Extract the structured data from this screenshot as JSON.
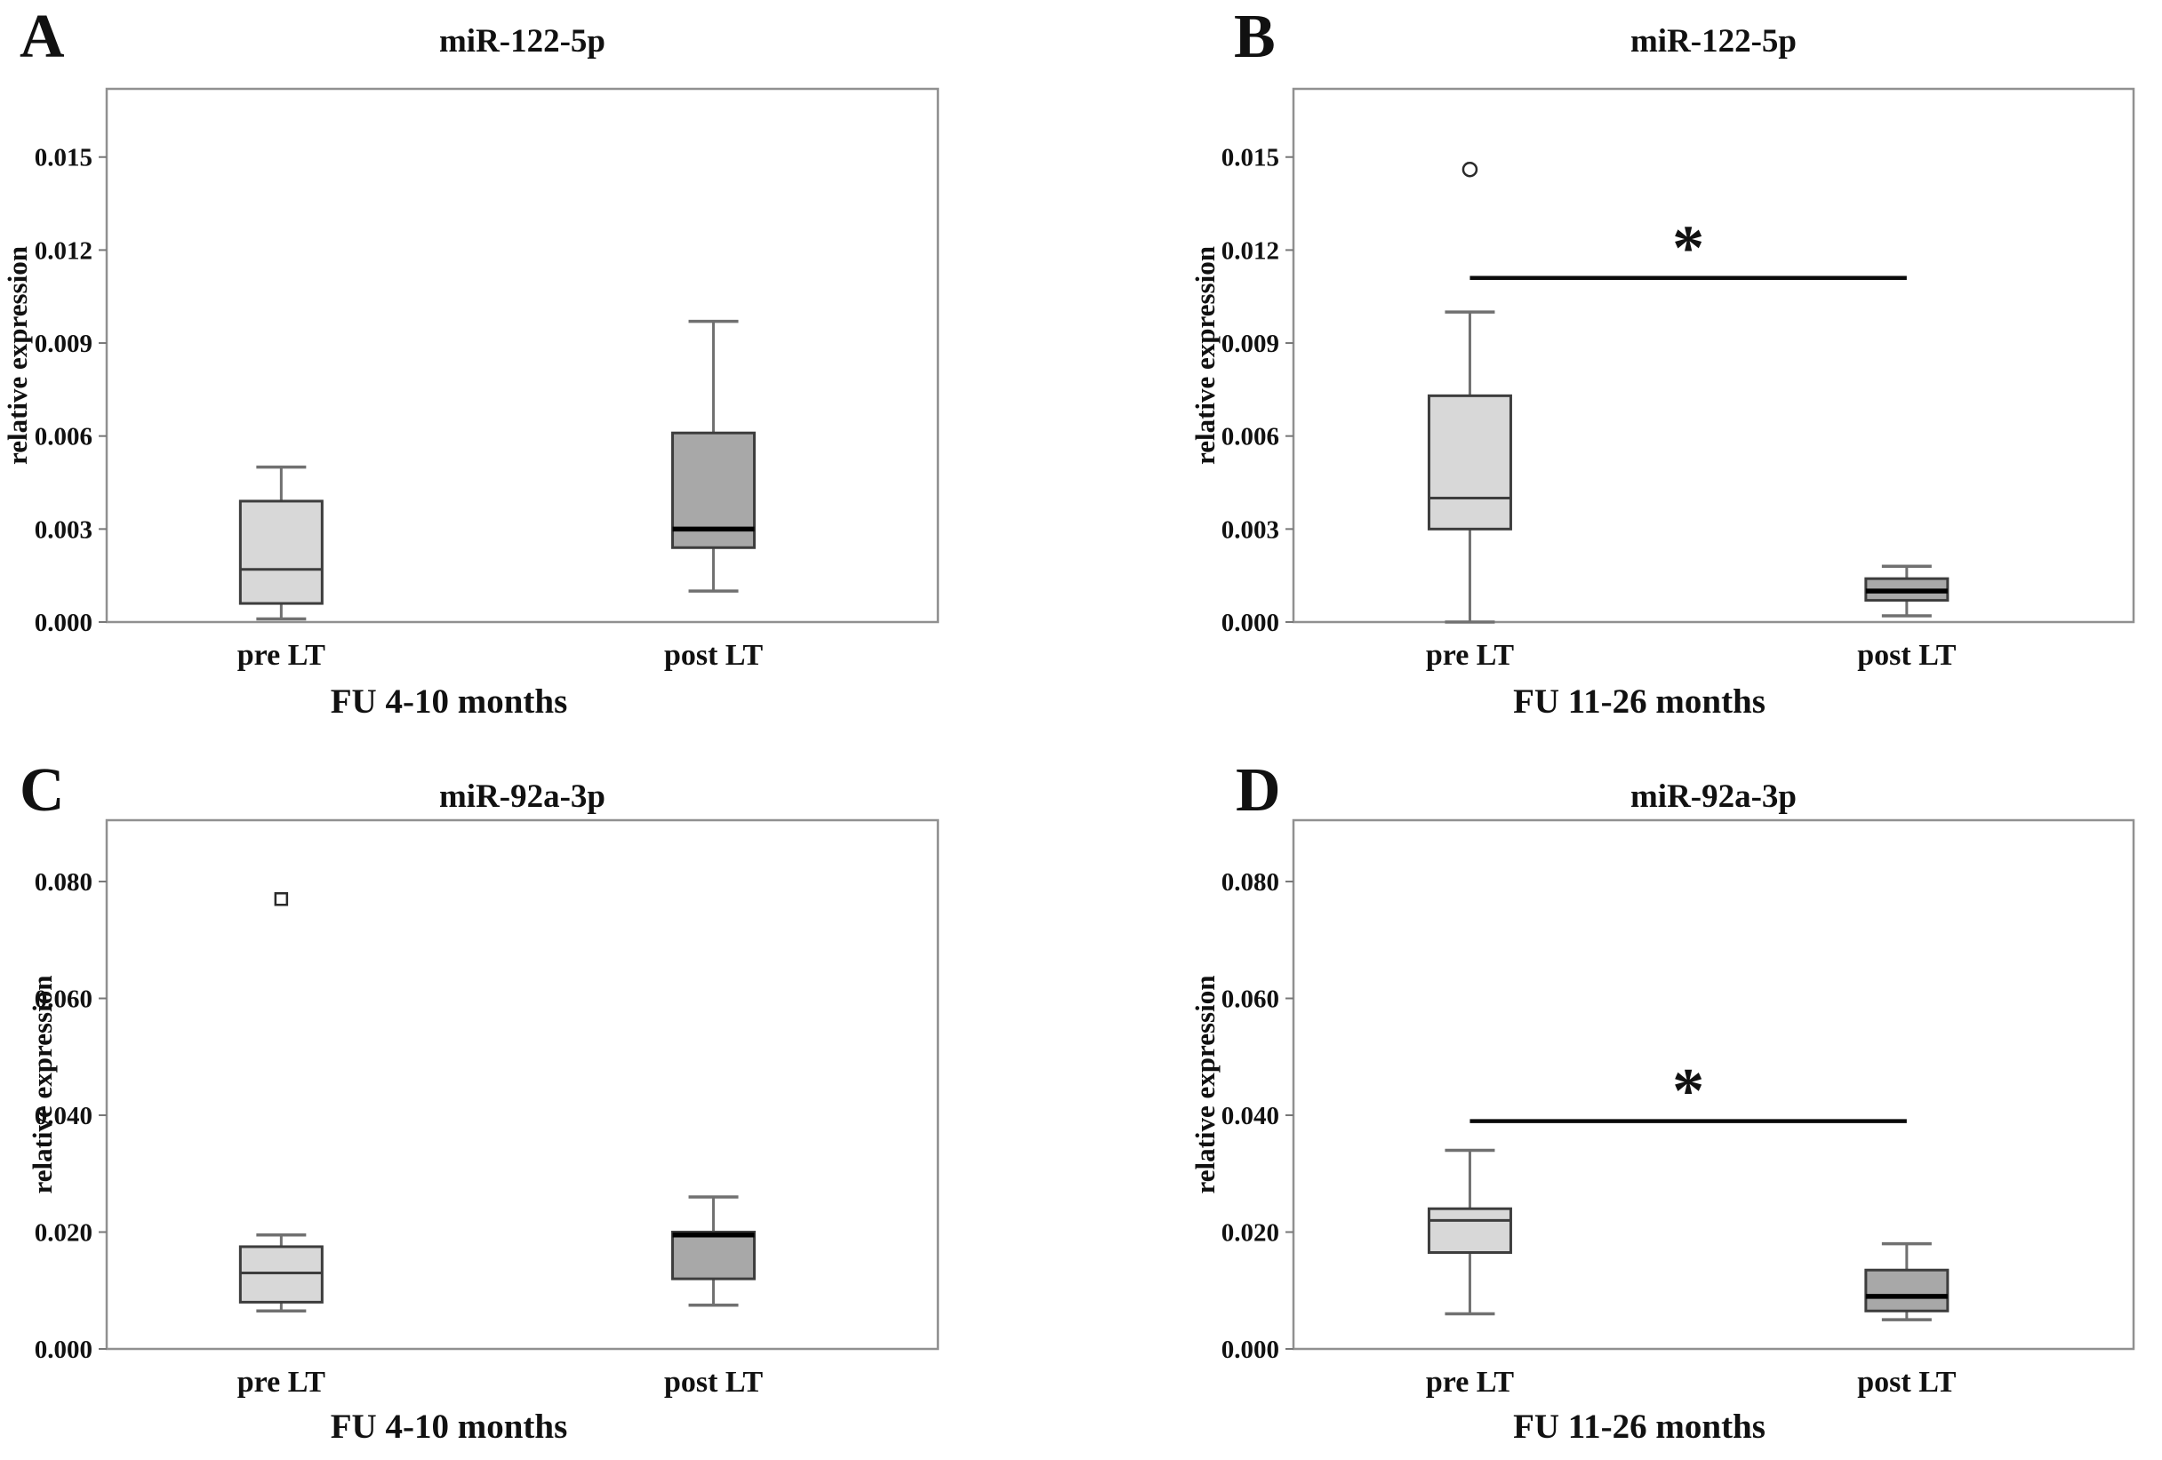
{
  "figure_title": "",
  "colors": {
    "pre_box_fill": "#d8d8d8",
    "post_box_fill": "#a8a8a8",
    "box_border": "#3d3d3d",
    "whisker": "#707070",
    "median_thin": "#3d3d3d",
    "median_thick": "#000000",
    "plot_frame": "#909090",
    "significance_line": "#0a0a0a",
    "text": "#111111"
  },
  "chart_data": [
    {
      "type": "box",
      "panel_letter": "A",
      "title": "miR-122-5p",
      "xlabel": "FU 4-10 months",
      "ylabel": "relative expression",
      "categories": [
        "pre LT",
        "post LT"
      ],
      "ylim": [
        0,
        0.0172
      ],
      "yticks": [
        0.0,
        0.003,
        0.006,
        0.009,
        0.012,
        0.015
      ],
      "ytick_labels": [
        "0.000",
        "0.003",
        "0.006",
        "0.009",
        "0.012",
        "0.015"
      ],
      "grid": false,
      "legend": "none",
      "boxes": [
        {
          "category": "pre LT",
          "whisker_low": 0.0001,
          "q1": 0.0006,
          "median": 0.0017,
          "q3": 0.0039,
          "whisker_high": 0.005,
          "fill": "#d8d8d8",
          "median_thick": false
        },
        {
          "category": "post LT",
          "whisker_low": 0.001,
          "q1": 0.0024,
          "median": 0.003,
          "q3": 0.0061,
          "whisker_high": 0.0097,
          "fill": "#a8a8a8",
          "median_thick": true
        }
      ],
      "outliers": [],
      "significance": null
    },
    {
      "type": "box",
      "panel_letter": "B",
      "title": "miR-122-5p",
      "xlabel": "FU 11-26 months",
      "ylabel": "relative expression",
      "categories": [
        "pre LT",
        "post LT"
      ],
      "ylim": [
        0,
        0.0172
      ],
      "yticks": [
        0.0,
        0.003,
        0.006,
        0.009,
        0.012,
        0.015
      ],
      "ytick_labels": [
        "0.000",
        "0.003",
        "0.006",
        "0.009",
        "0.012",
        "0.015"
      ],
      "grid": false,
      "legend": "none",
      "boxes": [
        {
          "category": "pre LT",
          "whisker_low": 0.0,
          "q1": 0.003,
          "median": 0.004,
          "q3": 0.0073,
          "whisker_high": 0.01,
          "fill": "#d8d8d8",
          "median_thick": false
        },
        {
          "category": "post LT",
          "whisker_low": 0.0002,
          "q1": 0.0007,
          "median": 0.001,
          "q3": 0.0014,
          "whisker_high": 0.0018,
          "fill": "#a8a8a8",
          "median_thick": true
        }
      ],
      "outliers": [
        {
          "category": "pre LT",
          "value": 0.0146,
          "marker": "circle"
        }
      ],
      "significance": {
        "symbol": "*",
        "y_value": 0.0111,
        "from": "pre LT",
        "to": "post LT"
      }
    },
    {
      "type": "box",
      "panel_letter": "C",
      "title": "miR-92a-3p",
      "xlabel": "FU 4-10 months",
      "ylabel": "relative expression",
      "categories": [
        "pre LT",
        "post LT"
      ],
      "ylim": [
        0,
        0.0905
      ],
      "yticks": [
        0.0,
        0.02,
        0.04,
        0.06,
        0.08
      ],
      "ytick_labels": [
        "0.000",
        "0.020",
        "0.040",
        "0.060",
        "0.080"
      ],
      "grid": false,
      "legend": "none",
      "boxes": [
        {
          "category": "pre LT",
          "whisker_low": 0.0065,
          "q1": 0.008,
          "median": 0.013,
          "q3": 0.0175,
          "whisker_high": 0.0195,
          "fill": "#d8d8d8",
          "median_thick": false
        },
        {
          "category": "post LT",
          "whisker_low": 0.0075,
          "q1": 0.012,
          "median": 0.0195,
          "q3": 0.02,
          "whisker_high": 0.026,
          "fill": "#a8a8a8",
          "median_thick": true
        }
      ],
      "outliers": [
        {
          "category": "pre LT",
          "value": 0.077,
          "marker": "square"
        }
      ],
      "significance": null
    },
    {
      "type": "box",
      "panel_letter": "D",
      "title": "miR-92a-3p",
      "xlabel": "FU 11-26 months",
      "ylabel": "relative expression",
      "categories": [
        "pre LT",
        "post LT"
      ],
      "ylim": [
        0,
        0.0905
      ],
      "yticks": [
        0.0,
        0.02,
        0.04,
        0.06,
        0.08
      ],
      "ytick_labels": [
        "0.000",
        "0.020",
        "0.040",
        "0.060",
        "0.080"
      ],
      "grid": false,
      "legend": "none",
      "boxes": [
        {
          "category": "pre LT",
          "whisker_low": 0.006,
          "q1": 0.0165,
          "median": 0.022,
          "q3": 0.024,
          "whisker_high": 0.034,
          "fill": "#d8d8d8",
          "median_thick": false
        },
        {
          "category": "post LT",
          "whisker_low": 0.005,
          "q1": 0.0065,
          "median": 0.009,
          "q3": 0.0135,
          "whisker_high": 0.018,
          "fill": "#a8a8a8",
          "median_thick": true
        }
      ],
      "outliers": [],
      "significance": {
        "symbol": "*",
        "y_value": 0.039,
        "from": "pre LT",
        "to": "post LT"
      }
    }
  ]
}
